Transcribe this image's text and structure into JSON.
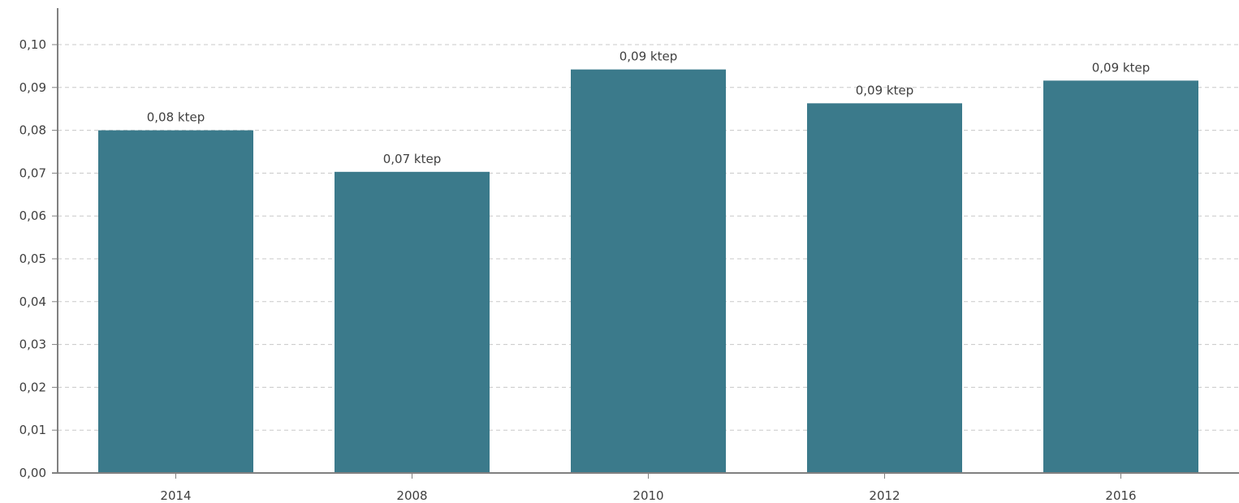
{
  "chart_data": {
    "type": "bar",
    "categories": [
      "2014",
      "2008",
      "2010",
      "2012",
      "2016"
    ],
    "values": [
      0.08,
      0.0703,
      0.0942,
      0.0863,
      0.0916
    ],
    "data_labels": [
      "0,08 ktep",
      "0,07 ktep",
      "0,09 ktep",
      "0,09 ktep",
      "0,09 ktep"
    ],
    "y_ticks": [
      "0,00",
      "0,01",
      "0,02",
      "0,03",
      "0,04",
      "0,05",
      "0,06",
      "0,07",
      "0,08",
      "0,09",
      "0,10"
    ],
    "ylim": [
      0,
      0.1
    ],
    "grid": true,
    "bar_color": "#3b7a8b",
    "title": "",
    "xlabel": "",
    "ylabel": ""
  }
}
